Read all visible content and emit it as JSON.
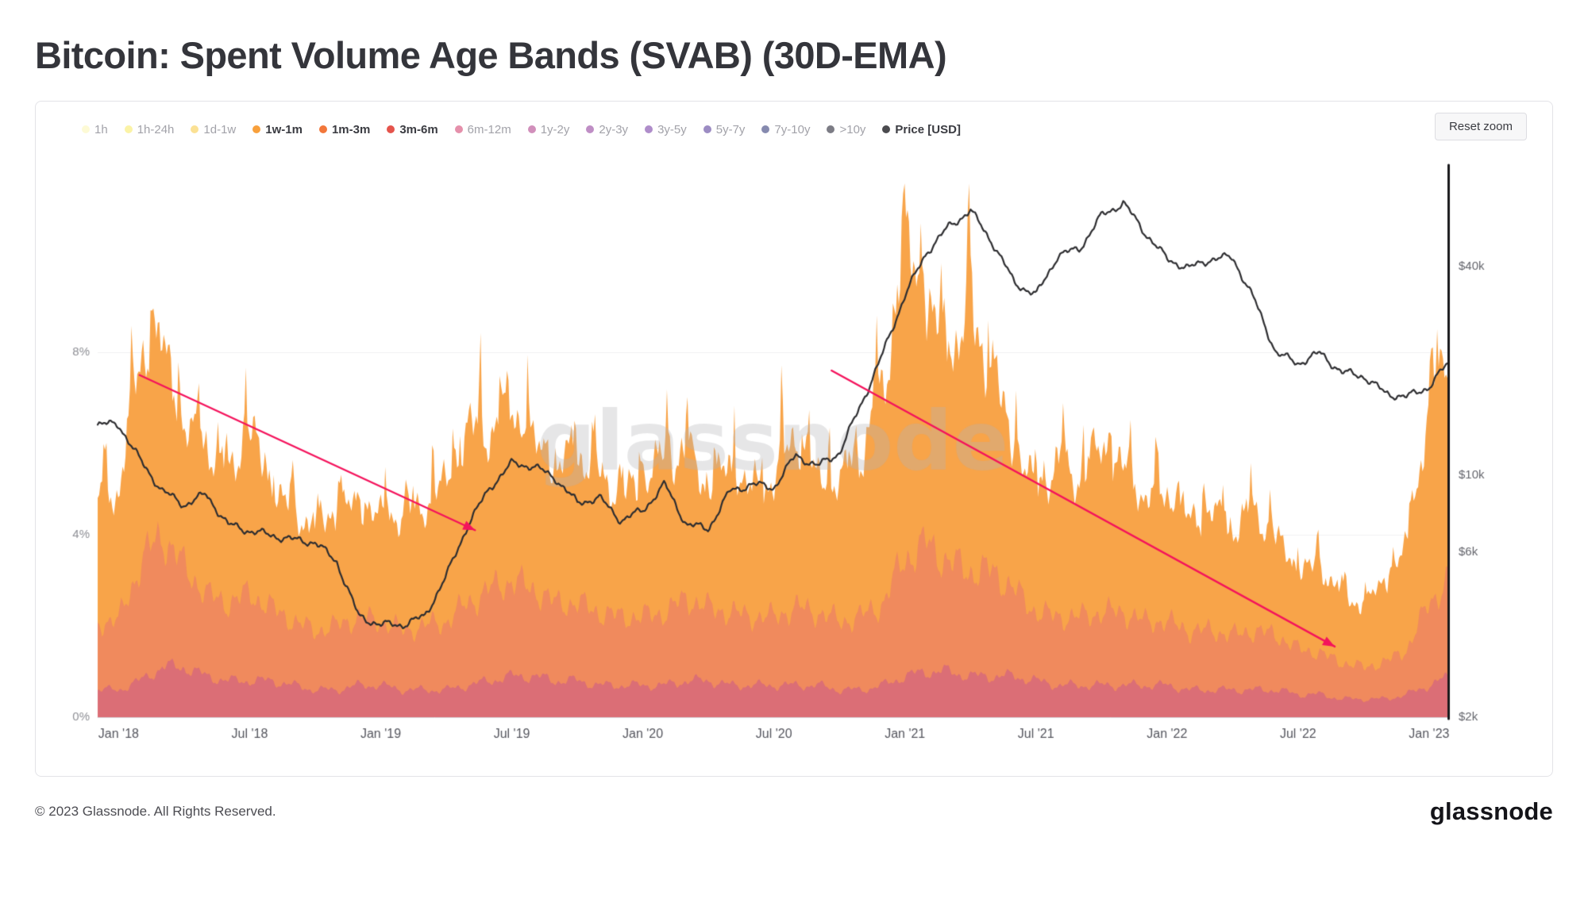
{
  "page": {
    "title": "Bitcoin: Spent Volume Age Bands (SVAB) (30D-EMA)",
    "footer_copyright": "© 2023 Glassnode. All Rights Reserved.",
    "footer_logo": "glassnode"
  },
  "toolbar": {
    "reset_zoom_label": "Reset zoom"
  },
  "legend": {
    "items": [
      {
        "label": "1h",
        "color": "#fbf6b3",
        "active": false
      },
      {
        "label": "1h-24h",
        "color": "#f8e95c",
        "active": false
      },
      {
        "label": "1d-1w",
        "color": "#f8c83d",
        "active": false
      },
      {
        "label": "1w-1m",
        "color": "#f8a03c",
        "active": true
      },
      {
        "label": "1m-3m",
        "color": "#f2773a",
        "active": true
      },
      {
        "label": "3m-6m",
        "color": "#e5544c",
        "active": true
      },
      {
        "label": "6m-12m",
        "color": "#d03566",
        "active": false
      },
      {
        "label": "1y-2y",
        "color": "#ab3383",
        "active": false
      },
      {
        "label": "2y-3y",
        "color": "#8b3196",
        "active": false
      },
      {
        "label": "3y-5y",
        "color": "#6d2f9e",
        "active": false
      },
      {
        "label": "5y-7y",
        "color": "#4a2d91",
        "active": false
      },
      {
        "label": "7y-10y",
        "color": "#232a6e",
        "active": false
      },
      {
        "label": ">10y",
        "color": "#101020",
        "active": false
      },
      {
        "label": "Price [USD]",
        "color": "#4b4b4f",
        "active": true
      }
    ]
  },
  "chart_data": {
    "type": "area",
    "title": "Bitcoin: Spent Volume Age Bands (SVAB) (30D-EMA)",
    "stacked": true,
    "watermark": "glassnode",
    "x_axis": {
      "range": [
        2017.92,
        2023.07
      ],
      "ticks": [
        {
          "label": "Jan '18",
          "t": 2018.0
        },
        {
          "label": "Jul '18",
          "t": 2018.5
        },
        {
          "label": "Jan '19",
          "t": 2019.0
        },
        {
          "label": "Jul '19",
          "t": 2019.5
        },
        {
          "label": "Jan '20",
          "t": 2020.0
        },
        {
          "label": "Jul '20",
          "t": 2020.5
        },
        {
          "label": "Jan '21",
          "t": 2021.0
        },
        {
          "label": "Jul '21",
          "t": 2021.5
        },
        {
          "label": "Jan '22",
          "t": 2022.0
        },
        {
          "label": "Jul '22",
          "t": 2022.5
        },
        {
          "label": "Jan '23",
          "t": 2023.0
        }
      ]
    },
    "y_left": {
      "unit": "%",
      "range": [
        0,
        12
      ],
      "ticks": [
        {
          "label": "0%",
          "v": 0
        },
        {
          "label": "4%",
          "v": 4
        },
        {
          "label": "8%",
          "v": 8
        }
      ]
    },
    "y_right": {
      "unit": "USD",
      "scale": "log",
      "range": [
        2000,
        76000
      ],
      "ticks": [
        {
          "label": "$2k",
          "p": 2000
        },
        {
          "label": "$6k",
          "p": 6000
        },
        {
          "label": "$10k",
          "p": 10000
        },
        {
          "label": "$40k",
          "p": 40000
        }
      ]
    },
    "months_start": 2018.0,
    "months_step": 0.0833333,
    "series": [
      {
        "name": "3m-6m",
        "color": "#db6e76",
        "values": [
          0.6,
          0.8,
          1.1,
          1.1,
          0.9,
          0.8,
          0.8,
          0.8,
          0.7,
          0.6,
          0.6,
          0.7,
          0.7,
          0.6,
          0.6,
          0.6,
          0.7,
          0.8,
          0.9,
          0.9,
          0.8,
          0.8,
          0.7,
          0.7,
          0.7,
          0.7,
          0.8,
          0.8,
          0.7,
          0.7,
          0.7,
          0.7,
          0.7,
          0.6,
          0.6,
          0.7,
          0.9,
          1.0,
          1.0,
          0.9,
          0.9,
          0.9,
          0.8,
          0.7,
          0.7,
          0.7,
          0.7,
          0.7,
          0.7,
          0.6,
          0.6,
          0.6,
          0.6,
          0.6,
          0.5,
          0.5,
          0.4,
          0.4,
          0.4,
          0.5,
          0.7,
          0.9
        ]
      },
      {
        "name": "1m-3m",
        "color": "#f08a5d",
        "values": [
          1.5,
          2.6,
          2.9,
          2.2,
          1.8,
          1.7,
          1.9,
          1.6,
          1.4,
          1.3,
          1.4,
          1.5,
          1.4,
          1.3,
          1.4,
          1.5,
          1.8,
          2.0,
          2.1,
          1.9,
          1.7,
          1.7,
          1.6,
          1.5,
          1.5,
          1.6,
          1.8,
          1.6,
          1.6,
          1.5,
          1.5,
          1.7,
          1.6,
          1.5,
          1.6,
          1.8,
          2.6,
          2.8,
          2.4,
          2.3,
          2.3,
          1.9,
          1.5,
          1.5,
          1.5,
          1.6,
          1.6,
          1.4,
          1.4,
          1.3,
          1.3,
          1.2,
          1.3,
          1.2,
          1.0,
          0.9,
          0.8,
          0.7,
          0.8,
          1.0,
          1.8,
          2.2
        ]
      },
      {
        "name": "1w-1m",
        "color": "#f8a449",
        "values": [
          2.8,
          4.5,
          4.2,
          3.0,
          3.3,
          2.8,
          3.6,
          2.6,
          2.4,
          2.2,
          2.6,
          2.4,
          2.3,
          2.5,
          2.6,
          3.0,
          3.8,
          3.4,
          3.8,
          3.2,
          2.9,
          3.3,
          3.0,
          2.6,
          3.0,
          3.4,
          3.2,
          2.6,
          3.2,
          2.7,
          3.0,
          3.8,
          2.9,
          3.0,
          3.6,
          4.6,
          6.8,
          5.2,
          4.6,
          5.6,
          4.3,
          3.1,
          2.7,
          3.3,
          3.0,
          3.6,
          3.1,
          2.7,
          2.8,
          2.4,
          2.6,
          2.3,
          2.6,
          2.1,
          1.7,
          1.9,
          1.5,
          1.3,
          1.8,
          2.2,
          4.4,
          4.8
        ]
      }
    ],
    "price_series": {
      "name": "Price [USD]",
      "color": "#2d2d30",
      "values": [
        14000,
        11000,
        9000,
        8200,
        8800,
        7200,
        6900,
        6700,
        6500,
        6400,
        5600,
        3900,
        3700,
        3700,
        3900,
        5100,
        7200,
        9200,
        10800,
        10600,
        9800,
        8300,
        8600,
        7400,
        7900,
        9400,
        7200,
        7000,
        9000,
        9400,
        9200,
        11400,
        10600,
        11600,
        16000,
        22500,
        33000,
        44000,
        52000,
        58000,
        47000,
        36000,
        33000,
        43000,
        45000,
        56000,
        61000,
        50000,
        42000,
        39500,
        42000,
        42500,
        32000,
        22500,
        21000,
        22500,
        19800,
        19300,
        17200,
        16800,
        18000,
        21500
      ]
    },
    "annotations": [
      {
        "type": "arrow",
        "color": "#f4135c",
        "from": [
          2018.08,
          7.5
        ],
        "to": [
          2019.36,
          4.1
        ]
      },
      {
        "type": "arrow",
        "color": "#f4135c",
        "from": [
          2020.72,
          7.6
        ],
        "to": [
          2022.64,
          1.55
        ]
      }
    ]
  }
}
